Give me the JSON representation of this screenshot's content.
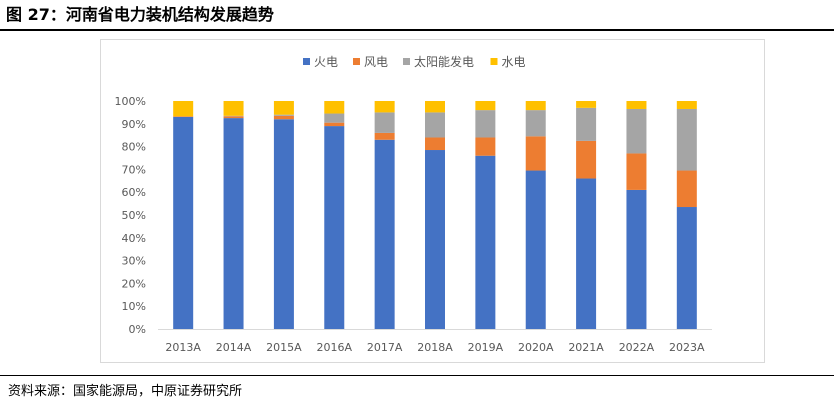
{
  "figure": {
    "title": "图 27：河南省电力装机结构发展趋势",
    "source": "资料来源：国家能源局，中原证券研究所"
  },
  "chart_data": {
    "type": "bar",
    "stacked": true,
    "categories": [
      "2013A",
      "2014A",
      "2015A",
      "2016A",
      "2017A",
      "2018A",
      "2019A",
      "2020A",
      "2021A",
      "2022A",
      "2023A"
    ],
    "series": [
      {
        "name": "火电",
        "color": "#4472C4",
        "values": [
          93.0,
          92.5,
          92.0,
          89.0,
          83.0,
          78.5,
          76.0,
          69.5,
          66.0,
          61.0,
          53.5
        ]
      },
      {
        "name": "风电",
        "color": "#ED7D31",
        "values": [
          0.3,
          0.8,
          1.5,
          1.5,
          3.0,
          5.5,
          8.0,
          15.0,
          16.5,
          16.0,
          16.0
        ]
      },
      {
        "name": "太阳能发电",
        "color": "#A5A5A5",
        "values": [
          0.0,
          0.2,
          0.5,
          4.0,
          9.0,
          11.0,
          12.0,
          11.5,
          14.5,
          19.5,
          27.0
        ]
      },
      {
        "name": "水电",
        "color": "#FFC000",
        "values": [
          6.7,
          6.5,
          6.0,
          5.5,
          5.0,
          5.0,
          4.0,
          4.0,
          3.0,
          3.5,
          3.5
        ]
      }
    ],
    "yticks": [
      "0%",
      "10%",
      "20%",
      "30%",
      "40%",
      "50%",
      "60%",
      "70%",
      "80%",
      "90%",
      "100%"
    ],
    "ylim": [
      0,
      100
    ],
    "grid": false,
    "legend_position": "top"
  }
}
